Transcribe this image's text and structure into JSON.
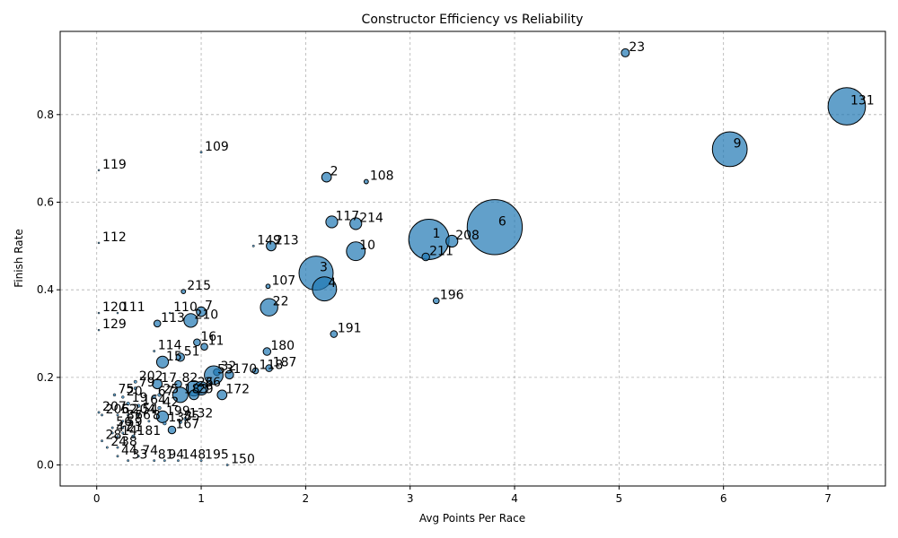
{
  "chart_data": {
    "type": "scatter",
    "title": "Constructor Efficiency vs Reliability",
    "xlabel": "Avg Points Per Race",
    "ylabel": "Finish Rate",
    "xlim": [
      -0.35,
      7.55
    ],
    "ylim": [
      -0.048,
      0.99
    ],
    "xticks": [
      0,
      1,
      2,
      3,
      4,
      5,
      6,
      7
    ],
    "xtick_labels": [
      "0",
      "1",
      "2",
      "3",
      "4",
      "5",
      "6",
      "7"
    ],
    "yticks": [
      0.0,
      0.2,
      0.4,
      0.6,
      0.8
    ],
    "ytick_labels": [
      "0.0",
      "0.2",
      "0.4",
      "0.6",
      "0.8"
    ],
    "grid": true,
    "colors": {
      "marker": "#1f77b4",
      "edge": "#000000"
    },
    "points": [
      {
        "label": "23",
        "x": 5.06,
        "y": 0.941,
        "size": 28
      },
      {
        "label": "131",
        "x": 7.18,
        "y": 0.819,
        "size": 600
      },
      {
        "label": "9",
        "x": 6.06,
        "y": 0.721,
        "size": 520
      },
      {
        "label": "109",
        "x": 1.0,
        "y": 0.714,
        "size": 2
      },
      {
        "label": "119",
        "x": 0.02,
        "y": 0.673,
        "size": 1
      },
      {
        "label": "2",
        "x": 2.2,
        "y": 0.657,
        "size": 40
      },
      {
        "label": "108",
        "x": 2.58,
        "y": 0.647,
        "size": 8
      },
      {
        "label": "117",
        "x": 2.25,
        "y": 0.555,
        "size": 60
      },
      {
        "label": "214",
        "x": 2.48,
        "y": 0.551,
        "size": 60
      },
      {
        "label": "6",
        "x": 3.81,
        "y": 0.543,
        "size": 1300
      },
      {
        "label": "1",
        "x": 3.18,
        "y": 0.515,
        "size": 700
      },
      {
        "label": "208",
        "x": 3.4,
        "y": 0.511,
        "size": 60
      },
      {
        "label": "112",
        "x": 0.02,
        "y": 0.507,
        "size": 1
      },
      {
        "label": "149",
        "x": 1.5,
        "y": 0.5,
        "size": 2
      },
      {
        "label": "213",
        "x": 1.67,
        "y": 0.5,
        "size": 40
      },
      {
        "label": "10",
        "x": 2.48,
        "y": 0.488,
        "size": 150
      },
      {
        "label": "211",
        "x": 3.15,
        "y": 0.475,
        "size": 25
      },
      {
        "label": "3",
        "x": 2.1,
        "y": 0.438,
        "size": 500
      },
      {
        "label": "107",
        "x": 1.64,
        "y": 0.408,
        "size": 8
      },
      {
        "label": "4",
        "x": 2.18,
        "y": 0.402,
        "size": 250
      },
      {
        "label": "215",
        "x": 0.83,
        "y": 0.396,
        "size": 8
      },
      {
        "label": "196",
        "x": 3.25,
        "y": 0.375,
        "size": 15
      },
      {
        "label": "22",
        "x": 1.65,
        "y": 0.36,
        "size": 130
      },
      {
        "label": "7",
        "x": 1.0,
        "y": 0.35,
        "size": 40
      },
      {
        "label": "120",
        "x": 0.02,
        "y": 0.347,
        "size": 1
      },
      {
        "label": "111",
        "x": 0.2,
        "y": 0.347,
        "size": 1
      },
      {
        "label": "110",
        "x": 0.7,
        "y": 0.347,
        "size": 1
      },
      {
        "label": "113",
        "x": 0.58,
        "y": 0.323,
        "size": 20
      },
      {
        "label": "210",
        "x": 0.9,
        "y": 0.33,
        "size": 80
      },
      {
        "label": "129",
        "x": 0.02,
        "y": 0.308,
        "size": 1
      },
      {
        "label": "191",
        "x": 2.27,
        "y": 0.299,
        "size": 20
      },
      {
        "label": "16",
        "x": 0.96,
        "y": 0.28,
        "size": 20
      },
      {
        "label": "11",
        "x": 1.03,
        "y": 0.27,
        "size": 20
      },
      {
        "label": "114",
        "x": 0.55,
        "y": 0.26,
        "size": 2
      },
      {
        "label": "180",
        "x": 1.63,
        "y": 0.259,
        "size": 25
      },
      {
        "label": "51",
        "x": 0.8,
        "y": 0.246,
        "size": 30
      },
      {
        "label": "15",
        "x": 0.63,
        "y": 0.235,
        "size": 60
      },
      {
        "label": "187",
        "x": 1.65,
        "y": 0.221,
        "size": 20
      },
      {
        "label": "118",
        "x": 1.52,
        "y": 0.215,
        "size": 15
      },
      {
        "label": "32",
        "x": 1.15,
        "y": 0.212,
        "size": 20
      },
      {
        "label": "170",
        "x": 1.27,
        "y": 0.206,
        "size": 30
      },
      {
        "label": "53",
        "x": 1.12,
        "y": 0.205,
        "size": 150
      },
      {
        "label": "202",
        "x": 0.37,
        "y": 0.19,
        "size": 4
      },
      {
        "label": "79",
        "x": 0.37,
        "y": 0.175,
        "size": 4
      },
      {
        "label": "17",
        "x": 0.58,
        "y": 0.185,
        "size": 40
      },
      {
        "label": "82",
        "x": 0.78,
        "y": 0.185,
        "size": 20
      },
      {
        "label": "26",
        "x": 0.93,
        "y": 0.175,
        "size": 100
      },
      {
        "label": "36",
        "x": 1.0,
        "y": 0.175,
        "size": 80
      },
      {
        "label": "172",
        "x": 1.2,
        "y": 0.16,
        "size": 40
      },
      {
        "label": "25",
        "x": 0.6,
        "y": 0.16,
        "size": 5
      },
      {
        "label": "67",
        "x": 0.55,
        "y": 0.155,
        "size": 5
      },
      {
        "label": "75",
        "x": 0.17,
        "y": 0.16,
        "size": 3
      },
      {
        "label": "20",
        "x": 0.25,
        "y": 0.155,
        "size": 3
      },
      {
        "label": "183",
        "x": 0.8,
        "y": 0.16,
        "size": 100
      },
      {
        "label": "29",
        "x": 0.93,
        "y": 0.16,
        "size": 40
      },
      {
        "label": "19",
        "x": 0.3,
        "y": 0.14,
        "size": 5
      },
      {
        "label": "164",
        "x": 0.4,
        "y": 0.135,
        "size": 5
      },
      {
        "label": "42",
        "x": 0.6,
        "y": 0.13,
        "size": 5
      },
      {
        "label": "207",
        "x": 0.02,
        "y": 0.12,
        "size": 2
      },
      {
        "label": "206",
        "x": 0.05,
        "y": 0.114,
        "size": 2
      },
      {
        "label": "52",
        "x": 0.2,
        "y": 0.114,
        "size": 2
      },
      {
        "label": "204",
        "x": 0.3,
        "y": 0.114,
        "size": 2
      },
      {
        "label": "54",
        "x": 0.4,
        "y": 0.114,
        "size": 2
      },
      {
        "label": "199",
        "x": 0.63,
        "y": 0.11,
        "size": 60
      },
      {
        "label": "132",
        "x": 0.85,
        "y": 0.105,
        "size": 5
      },
      {
        "label": "87",
        "x": 0.25,
        "y": 0.1,
        "size": 2
      },
      {
        "label": "66",
        "x": 0.33,
        "y": 0.1,
        "size": 2
      },
      {
        "label": "8",
        "x": 0.5,
        "y": 0.1,
        "size": 2
      },
      {
        "label": "85",
        "x": 0.8,
        "y": 0.098,
        "size": 5
      },
      {
        "label": "137",
        "x": 0.65,
        "y": 0.095,
        "size": 5
      },
      {
        "label": "167",
        "x": 0.72,
        "y": 0.08,
        "size": 25
      },
      {
        "label": "56",
        "x": 0.15,
        "y": 0.085,
        "size": 2
      },
      {
        "label": "59",
        "x": 0.25,
        "y": 0.085,
        "size": 2
      },
      {
        "label": "47",
        "x": 0.15,
        "y": 0.073,
        "size": 2
      },
      {
        "label": "21",
        "x": 0.25,
        "y": 0.073,
        "size": 2
      },
      {
        "label": "181",
        "x": 0.35,
        "y": 0.065,
        "size": 5
      },
      {
        "label": "14",
        "x": 0.2,
        "y": 0.065,
        "size": 2
      },
      {
        "label": "28",
        "x": 0.05,
        "y": 0.055,
        "size": 2
      },
      {
        "label": "24",
        "x": 0.1,
        "y": 0.04,
        "size": 2
      },
      {
        "label": "38",
        "x": 0.2,
        "y": 0.04,
        "size": 2
      },
      {
        "label": "74",
        "x": 0.4,
        "y": 0.02,
        "size": 2
      },
      {
        "label": "148",
        "x": 0.78,
        "y": 0.01,
        "size": 2
      },
      {
        "label": "195",
        "x": 1.0,
        "y": 0.01,
        "size": 2
      },
      {
        "label": "150",
        "x": 1.25,
        "y": 0.0,
        "size": 2
      },
      {
        "label": "81",
        "x": 0.55,
        "y": 0.01,
        "size": 2
      },
      {
        "label": "94",
        "x": 0.65,
        "y": 0.01,
        "size": 2
      },
      {
        "label": "33",
        "x": 0.3,
        "y": 0.01,
        "size": 2
      },
      {
        "label": "44",
        "x": 0.2,
        "y": 0.02,
        "size": 2
      }
    ]
  }
}
